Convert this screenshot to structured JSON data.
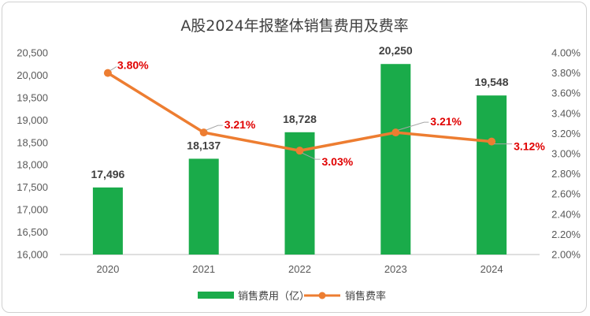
{
  "chart_data": {
    "type": "bar+line",
    "title": "A股2024年报整体销售费用及费率",
    "categories": [
      "2020",
      "2021",
      "2022",
      "2023",
      "2024"
    ],
    "series": [
      {
        "name": "销售费用（亿）",
        "type": "bar",
        "axis": "left",
        "values": [
          17496,
          18137,
          18728,
          20250,
          19548
        ],
        "labels": [
          "17,496",
          "18,137",
          "18,728",
          "20,250",
          "19,548"
        ],
        "color": "#1aab4a"
      },
      {
        "name": "销售费率",
        "type": "line",
        "axis": "right",
        "values": [
          3.8,
          3.21,
          3.03,
          3.21,
          3.12
        ],
        "labels": [
          "3.80%",
          "3.21%",
          "3.03%",
          "3.21%",
          "3.12%"
        ],
        "color": "#ed7d31"
      }
    ],
    "y_left": {
      "min": 16000,
      "max": 20500,
      "ticks": [
        "16,000",
        "16,500",
        "17,000",
        "17,500",
        "18,000",
        "18,500",
        "19,000",
        "19,500",
        "20,000",
        "20,500"
      ]
    },
    "y_right": {
      "min": 2.0,
      "max": 4.0,
      "ticks": [
        "2.00%",
        "2.20%",
        "2.40%",
        "2.60%",
        "2.80%",
        "3.00%",
        "3.20%",
        "3.40%",
        "3.60%",
        "3.80%",
        "4.00%"
      ]
    },
    "grid": false,
    "legend": "bottom",
    "label_color": "#e00000"
  }
}
